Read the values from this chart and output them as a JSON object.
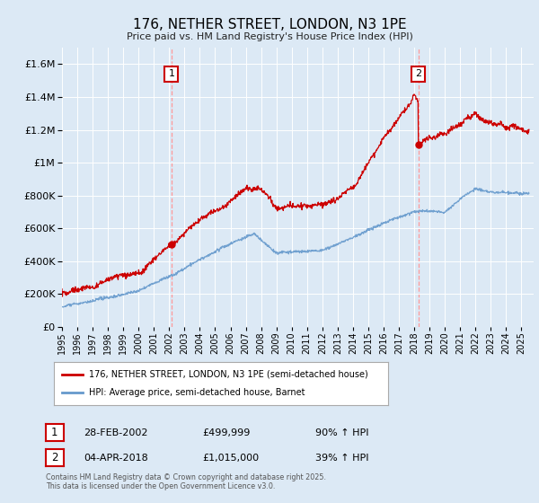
{
  "title": "176, NETHER STREET, LONDON, N3 1PE",
  "subtitle": "Price paid vs. HM Land Registry's House Price Index (HPI)",
  "bg_color": "#dce9f5",
  "red_color": "#cc0000",
  "blue_color": "#6699cc",
  "dashed_color": "#ff9999",
  "annotation1_date": "28-FEB-2002",
  "annotation1_price": "£499,999",
  "annotation1_hpi": "90% ↑ HPI",
  "annotation2_date": "04-APR-2018",
  "annotation2_price": "£1,015,000",
  "annotation2_hpi": "39% ↑ HPI",
  "legend_label1": "176, NETHER STREET, LONDON, N3 1PE (semi-detached house)",
  "legend_label2": "HPI: Average price, semi-detached house, Barnet",
  "footer": "Contains HM Land Registry data © Crown copyright and database right 2025.\nThis data is licensed under the Open Government Licence v3.0.",
  "ylim_max": 1700000,
  "sale1_x": 2002.15,
  "sale2_x": 2018.27,
  "sale1_price": 499999,
  "sale2_price": 1015000,
  "yticks": [
    0,
    200000,
    400000,
    600000,
    800000,
    1000000,
    1200000,
    1400000,
    1600000
  ],
  "xlim": [
    1995,
    2025.8
  ]
}
